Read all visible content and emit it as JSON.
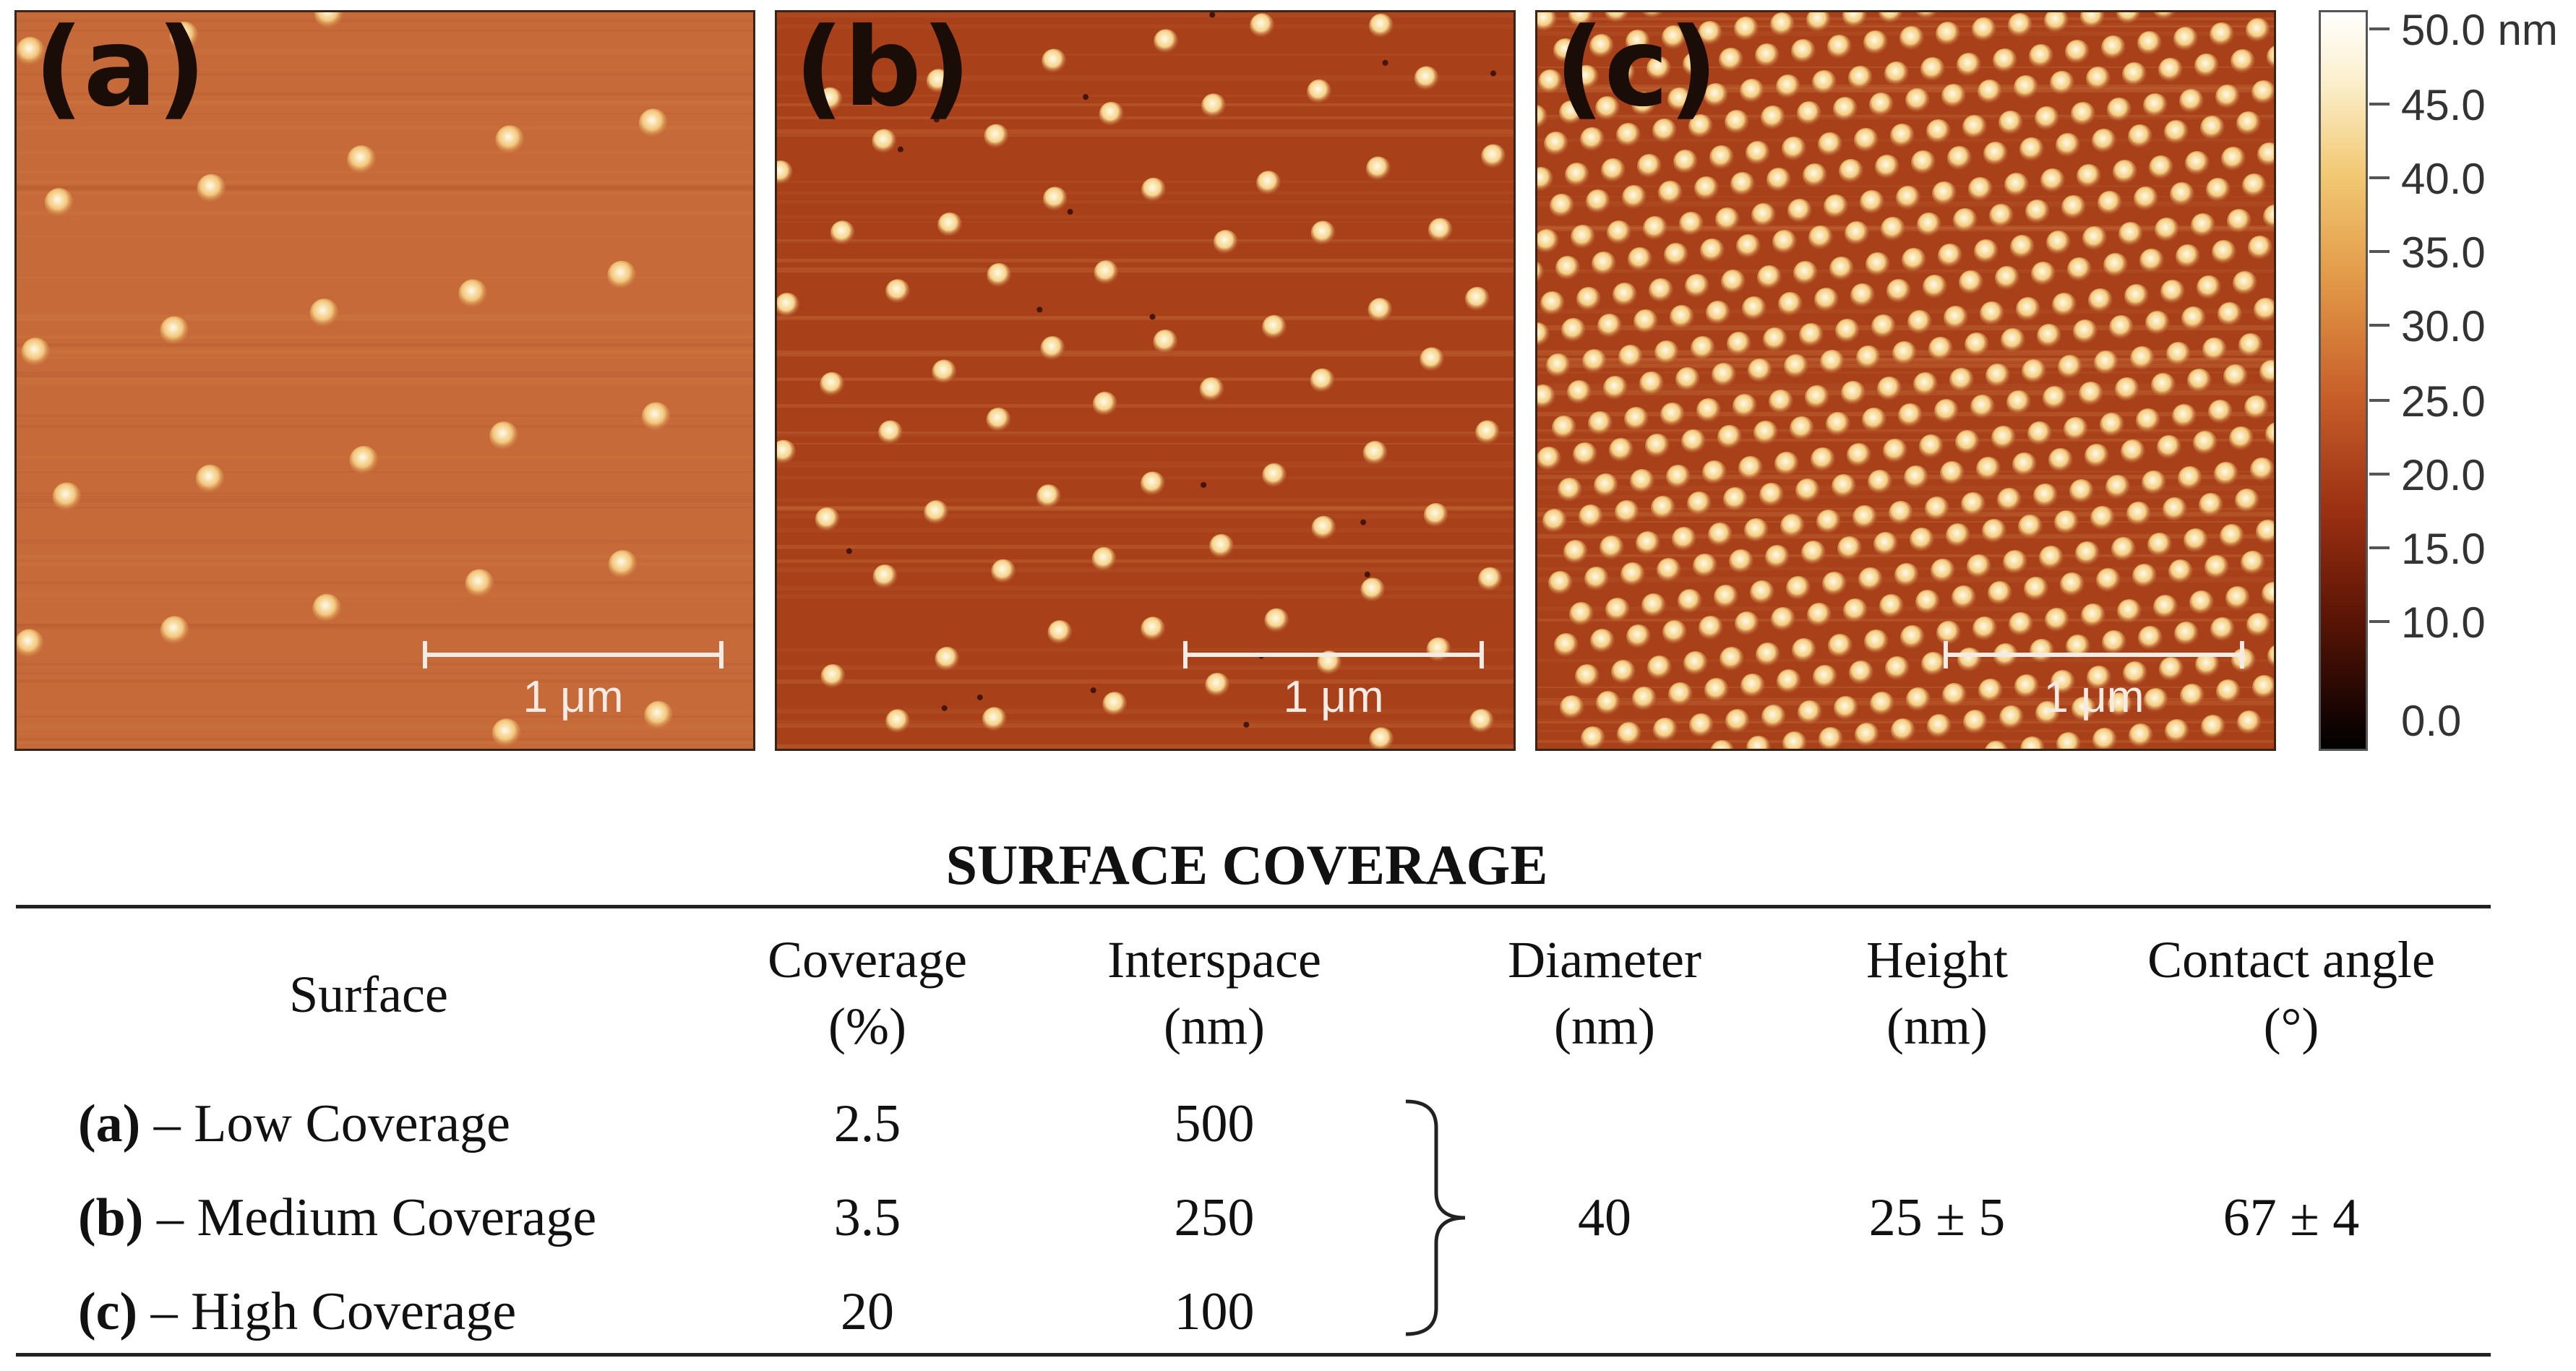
{
  "panels": [
    {
      "id": "a",
      "label": "(a)",
      "scalebar_label": "1 μm",
      "base_color": "#c56a38"
    },
    {
      "id": "b",
      "label": "(b)",
      "scalebar_label": "1 μm",
      "base_color": "#a8401a"
    },
    {
      "id": "c",
      "label": "(c)",
      "scalebar_label": "1 μm",
      "base_color": "#a8401a"
    }
  ],
  "colorbar": {
    "ticks": [
      "50.0 nm",
      "45.0",
      "40.0",
      "35.0",
      "30.0",
      "25.0",
      "20.0",
      "15.0",
      "10.0",
      "0.0"
    ]
  },
  "table": {
    "title": "SURFACE COVERAGE",
    "headers": {
      "surface": "Surface",
      "coverage": [
        "Coverage",
        "(%)"
      ],
      "interspace": [
        "Interspace",
        "(nm)"
      ],
      "diameter": [
        "Diameter",
        "(nm)"
      ],
      "height": [
        "Height",
        "(nm)"
      ],
      "contact_angle": [
        "Contact angle",
        "(°)"
      ]
    },
    "rows": [
      {
        "tag": "(a)",
        "name": "– Low Coverage",
        "coverage": "2.5",
        "interspace": "500"
      },
      {
        "tag": "(b)",
        "name": "– Medium Coverage",
        "coverage": "3.5",
        "interspace": "250"
      },
      {
        "tag": "(c)",
        "name": "– High Coverage",
        "coverage": "20",
        "interspace": "100"
      }
    ],
    "shared": {
      "diameter": "40",
      "height": "25 ± 5",
      "contact_angle": "67 ± 4"
    }
  }
}
